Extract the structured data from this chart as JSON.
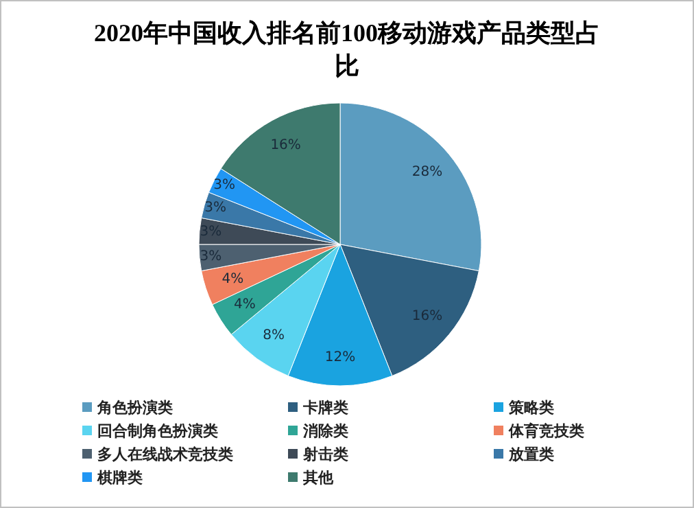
{
  "chart_data": {
    "type": "pie",
    "title": "2020年中国收入排名前100移动游戏产品类型占比",
    "categories": [
      "角色扮演类",
      "卡牌类",
      "策略类",
      "回合制角色扮演类",
      "消除类",
      "体育竞技类",
      "多人在线战术竞技类",
      "射击类",
      "放置类",
      "棋牌类",
      "其他"
    ],
    "values": [
      28,
      16,
      12,
      8,
      4,
      4,
      3,
      3,
      3,
      3,
      16
    ],
    "colors": [
      "#5b9cc0",
      "#2e5f80",
      "#1aa3e0",
      "#5ad4f0",
      "#2fa596",
      "#f0805f",
      "#4d6070",
      "#3e4a57",
      "#3a78a8",
      "#2196f3",
      "#3e7a6e"
    ],
    "value_labels": [
      "28%",
      "16%",
      "12%",
      "8%",
      "4%",
      "4%",
      "3%",
      "3%",
      "3%",
      "3%",
      "16%"
    ],
    "legend": "bottom"
  }
}
